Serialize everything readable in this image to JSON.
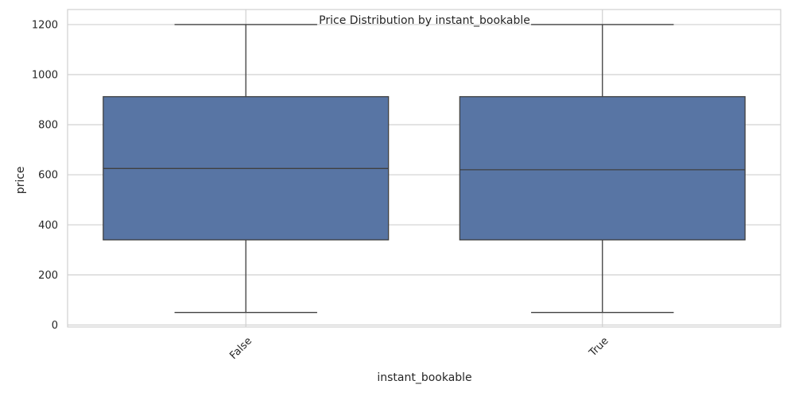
{
  "chart_data": {
    "type": "box",
    "title": "Price Distribution by instant_bookable",
    "xlabel": "instant_bookable",
    "ylabel": "price",
    "ylim": [
      -8,
      1260
    ],
    "yticks": [
      0,
      200,
      400,
      600,
      800,
      1000,
      1200
    ],
    "categories": [
      "False",
      "True"
    ],
    "boxes": [
      {
        "category": "False",
        "min": 50,
        "q1": 340,
        "median": 625,
        "q3": 912,
        "max": 1200
      },
      {
        "category": "True",
        "min": 50,
        "q1": 340,
        "median": 620,
        "q3": 912,
        "max": 1200
      }
    ],
    "colors": {
      "box_fill": "#5875a4",
      "box_edge": "#404040",
      "grid": "#d0d0d0",
      "frame": "#d0d0d0"
    },
    "grid": true,
    "legend": false
  }
}
